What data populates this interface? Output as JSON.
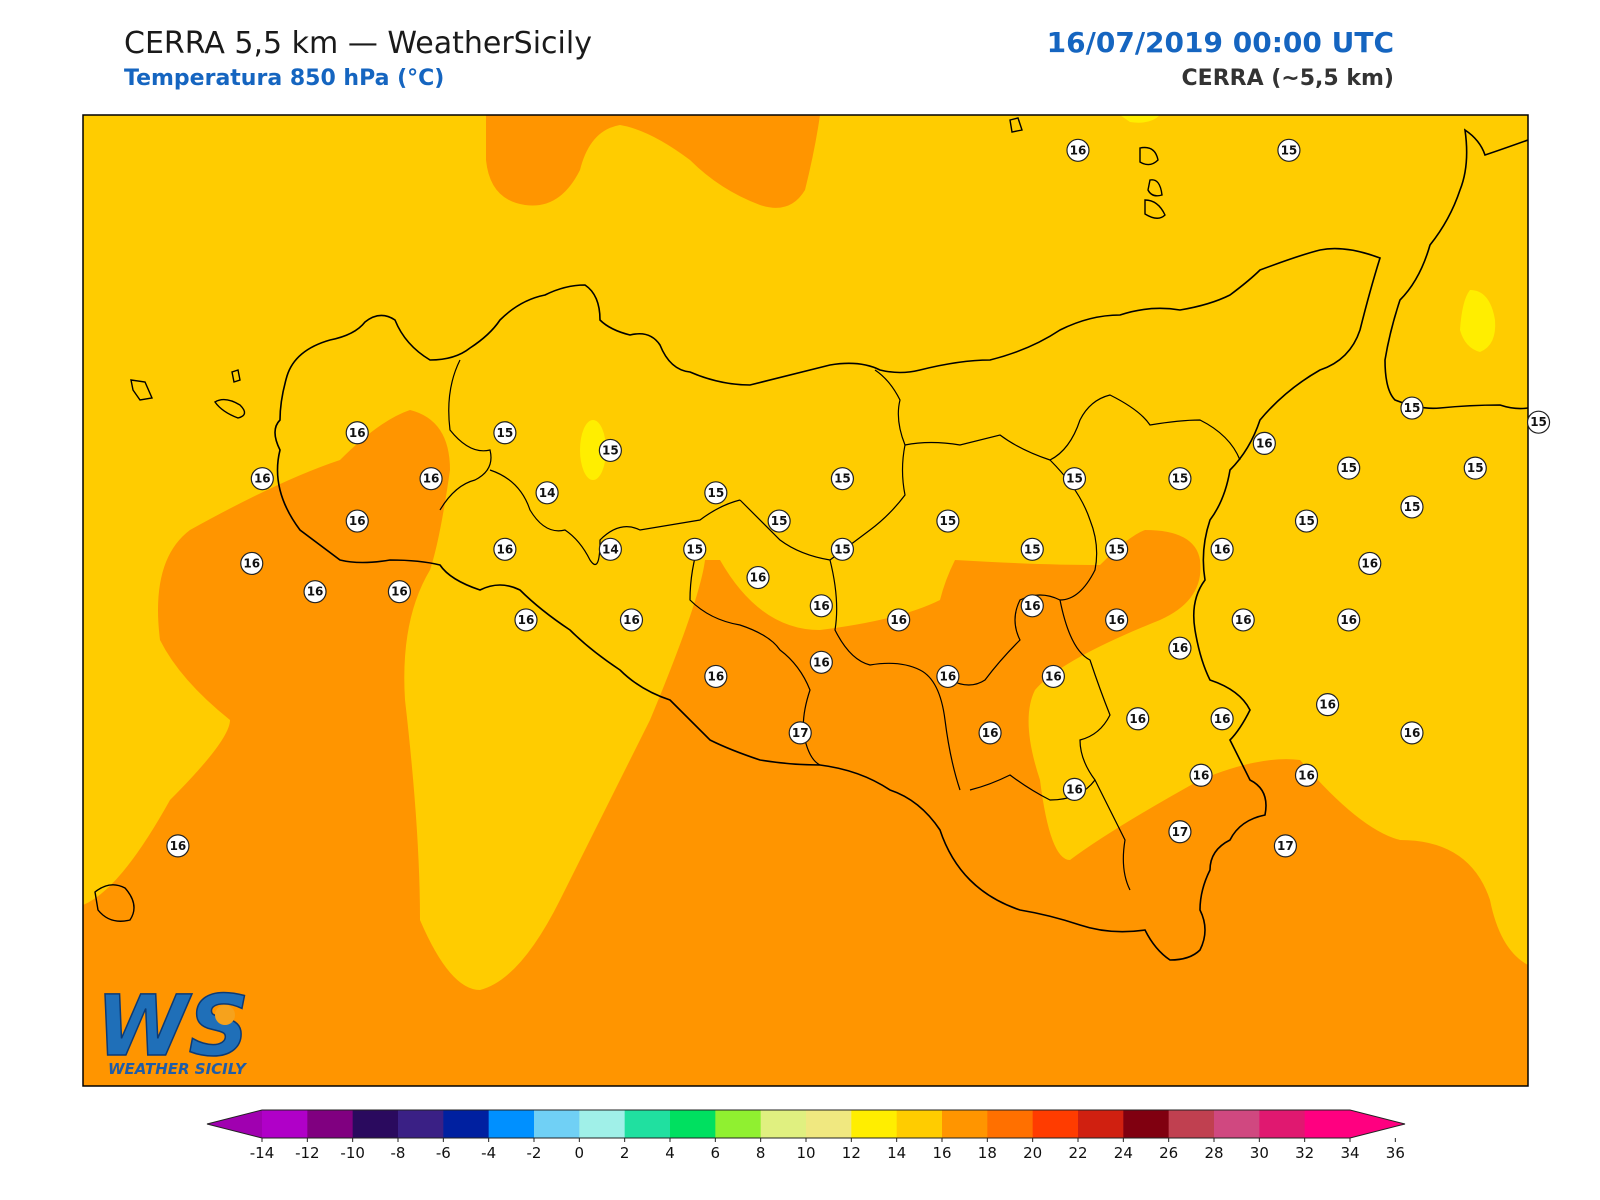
{
  "header": {
    "title": "CERRA 5,5 km — WeatherSicily",
    "subtitle": "Temperatura 850 hPa (°C)",
    "datetime": "16/07/2019 00:00 UTC",
    "model": "CERRA (~5,5 km)"
  },
  "colors": {
    "field_14_16": "#ffcc00",
    "field_16_18": "#ff9500",
    "field_12_14": "#ffee00",
    "coastline": "#000000"
  },
  "logo": {
    "letters": "WS",
    "text": "WEATHER SICILY"
  },
  "stations": [
    {
      "value": "16",
      "lon": 14.5,
      "lat": 38.95
    },
    {
      "value": "15",
      "lon": 15.1,
      "lat": 38.95
    },
    {
      "value": "16",
      "lon": 12.45,
      "lat": 38.15
    },
    {
      "value": "15",
      "lon": 12.87,
      "lat": 38.15
    },
    {
      "value": "15",
      "lon": 13.17,
      "lat": 38.1
    },
    {
      "value": "16",
      "lon": 12.18,
      "lat": 38.02
    },
    {
      "value": "16",
      "lon": 12.66,
      "lat": 38.02
    },
    {
      "value": "14",
      "lon": 12.99,
      "lat": 37.98
    },
    {
      "value": "15",
      "lon": 13.47,
      "lat": 37.98
    },
    {
      "value": "15",
      "lon": 13.83,
      "lat": 38.02
    },
    {
      "value": "15",
      "lon": 14.49,
      "lat": 38.02
    },
    {
      "value": "15",
      "lon": 14.79,
      "lat": 38.02
    },
    {
      "value": "16",
      "lon": 15.03,
      "lat": 38.12
    },
    {
      "value": "15",
      "lon": 15.27,
      "lat": 38.05
    },
    {
      "value": "15",
      "lon": 15.63,
      "lat": 38.05
    },
    {
      "value": "15",
      "lon": 15.45,
      "lat": 38.22
    },
    {
      "value": "15",
      "lon": 15.81,
      "lat": 38.18
    },
    {
      "value": "16",
      "lon": 12.45,
      "lat": 37.9
    },
    {
      "value": "15",
      "lon": 13.65,
      "lat": 37.9
    },
    {
      "value": "15",
      "lon": 14.13,
      "lat": 37.9
    },
    {
      "value": "15",
      "lon": 15.15,
      "lat": 37.9
    },
    {
      "value": "15",
      "lon": 15.45,
      "lat": 37.94
    },
    {
      "value": "16",
      "lon": 12.87,
      "lat": 37.82
    },
    {
      "value": "14",
      "lon": 13.17,
      "lat": 37.82
    },
    {
      "value": "15",
      "lon": 13.41,
      "lat": 37.82
    },
    {
      "value": "15",
      "lon": 13.83,
      "lat": 37.82
    },
    {
      "value": "15",
      "lon": 14.37,
      "lat": 37.82
    },
    {
      "value": "15",
      "lon": 14.61,
      "lat": 37.82
    },
    {
      "value": "16",
      "lon": 14.91,
      "lat": 37.82
    },
    {
      "value": "16",
      "lon": 12.15,
      "lat": 37.78
    },
    {
      "value": "16",
      "lon": 15.33,
      "lat": 37.78
    },
    {
      "value": "16",
      "lon": 13.59,
      "lat": 37.74
    },
    {
      "value": "16",
      "lon": 12.33,
      "lat": 37.7
    },
    {
      "value": "16",
      "lon": 12.57,
      "lat": 37.7
    },
    {
      "value": "16",
      "lon": 13.77,
      "lat": 37.66
    },
    {
      "value": "16",
      "lon": 14.37,
      "lat": 37.66
    },
    {
      "value": "16",
      "lon": 12.93,
      "lat": 37.62
    },
    {
      "value": "16",
      "lon": 13.23,
      "lat": 37.62
    },
    {
      "value": "16",
      "lon": 13.99,
      "lat": 37.62
    },
    {
      "value": "16",
      "lon": 14.61,
      "lat": 37.62
    },
    {
      "value": "16",
      "lon": 14.97,
      "lat": 37.62
    },
    {
      "value": "16",
      "lon": 15.27,
      "lat": 37.62
    },
    {
      "value": "16",
      "lon": 14.79,
      "lat": 37.54
    },
    {
      "value": "16",
      "lon": 13.77,
      "lat": 37.5
    },
    {
      "value": "16",
      "lon": 13.47,
      "lat": 37.46
    },
    {
      "value": "16",
      "lon": 14.13,
      "lat": 37.46
    },
    {
      "value": "16",
      "lon": 14.43,
      "lat": 37.46
    },
    {
      "value": "16",
      "lon": 15.21,
      "lat": 37.38
    },
    {
      "value": "16",
      "lon": 14.67,
      "lat": 37.34
    },
    {
      "value": "16",
      "lon": 14.91,
      "lat": 37.34
    },
    {
      "value": "17",
      "lon": 13.71,
      "lat": 37.3
    },
    {
      "value": "16",
      "lon": 14.25,
      "lat": 37.3
    },
    {
      "value": "16",
      "lon": 15.45,
      "lat": 37.3
    },
    {
      "value": "16",
      "lon": 14.85,
      "lat": 37.18
    },
    {
      "value": "16",
      "lon": 15.15,
      "lat": 37.18
    },
    {
      "value": "16",
      "lon": 14.49,
      "lat": 37.14
    },
    {
      "value": "17",
      "lon": 14.79,
      "lat": 37.02
    },
    {
      "value": "17",
      "lon": 15.09,
      "lat": 36.98
    },
    {
      "value": "16",
      "lon": 11.94,
      "lat": 36.98
    }
  ],
  "colorbar": {
    "ticks": [
      "-14",
      "-12",
      "-10",
      "-8",
      "-6",
      "-4",
      "-2",
      "0",
      "2",
      "4",
      "6",
      "8",
      "10",
      "12",
      "14",
      "16",
      "18",
      "20",
      "22",
      "24",
      "26",
      "28",
      "30",
      "32",
      "34",
      "36"
    ],
    "colors": [
      "#b000c8",
      "#800080",
      "#2a0a5e",
      "#3a2085",
      "#0020a0",
      "#0090ff",
      "#70d0f5",
      "#a0f0e8",
      "#20e0a0",
      "#00e060",
      "#90f030",
      "#e0f080",
      "#f0e880",
      "#ffee00",
      "#ffcc00",
      "#ff9500",
      "#ff7000",
      "#ff3c00",
      "#d02010",
      "#800010",
      "#c04050",
      "#d04880",
      "#e01870",
      "#ff0080"
    ],
    "low_cap_color": "#a000b0",
    "high_cap_color": "#ff0080"
  }
}
